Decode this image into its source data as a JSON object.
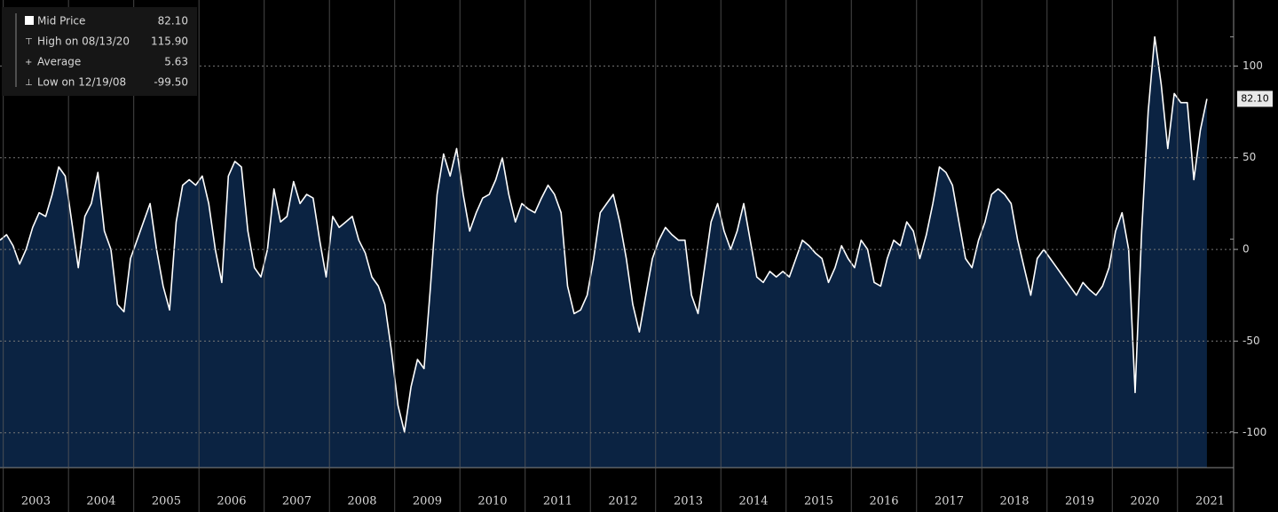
{
  "chart_data": {
    "type": "area",
    "x": [
      2002.95,
      2003.05,
      2003.15,
      2003.25,
      2003.35,
      2003.45,
      2003.55,
      2003.65,
      2003.75,
      2003.85,
      2003.95,
      2004.05,
      2004.15,
      2004.25,
      2004.35,
      2004.45,
      2004.55,
      2004.65,
      2004.75,
      2004.85,
      2004.95,
      2005.05,
      2005.15,
      2005.25,
      2005.35,
      2005.45,
      2005.55,
      2005.65,
      2005.75,
      2005.85,
      2005.95,
      2006.05,
      2006.15,
      2006.25,
      2006.35,
      2006.45,
      2006.55,
      2006.65,
      2006.75,
      2006.85,
      2006.95,
      2007.05,
      2007.15,
      2007.25,
      2007.35,
      2007.45,
      2007.55,
      2007.65,
      2007.75,
      2007.85,
      2007.95,
      2008.05,
      2008.15,
      2008.25,
      2008.35,
      2008.45,
      2008.55,
      2008.65,
      2008.75,
      2008.85,
      2008.95,
      2009.05,
      2009.15,
      2009.25,
      2009.35,
      2009.45,
      2009.55,
      2009.65,
      2009.75,
      2009.85,
      2009.95,
      2010.05,
      2010.15,
      2010.25,
      2010.35,
      2010.45,
      2010.55,
      2010.65,
      2010.75,
      2010.85,
      2010.95,
      2011.05,
      2011.15,
      2011.25,
      2011.35,
      2011.45,
      2011.55,
      2011.65,
      2011.75,
      2011.85,
      2011.95,
      2012.05,
      2012.15,
      2012.25,
      2012.35,
      2012.45,
      2012.55,
      2012.65,
      2012.75,
      2012.85,
      2012.95,
      2013.05,
      2013.15,
      2013.25,
      2013.35,
      2013.45,
      2013.55,
      2013.65,
      2013.75,
      2013.85,
      2013.95,
      2014.05,
      2014.15,
      2014.25,
      2014.35,
      2014.45,
      2014.55,
      2014.65,
      2014.75,
      2014.85,
      2014.95,
      2015.05,
      2015.15,
      2015.25,
      2015.35,
      2015.45,
      2015.55,
      2015.65,
      2015.75,
      2015.85,
      2015.95,
      2016.05,
      2016.15,
      2016.25,
      2016.35,
      2016.45,
      2016.55,
      2016.65,
      2016.75,
      2016.85,
      2016.95,
      2017.05,
      2017.15,
      2017.25,
      2017.35,
      2017.45,
      2017.55,
      2017.65,
      2017.75,
      2017.85,
      2017.95,
      2018.05,
      2018.15,
      2018.25,
      2018.35,
      2018.45,
      2018.55,
      2018.65,
      2018.75,
      2018.85,
      2018.95,
      2019.05,
      2019.15,
      2019.25,
      2019.35,
      2019.45,
      2019.55,
      2019.65,
      2019.75,
      2019.85,
      2019.95,
      2020.05,
      2020.15,
      2020.25,
      2020.35,
      2020.45,
      2020.55,
      2020.65,
      2020.75,
      2020.85,
      2020.95,
      2021.05,
      2021.15,
      2021.25,
      2021.35,
      2021.45
    ],
    "series": [
      {
        "name": "Mid Price",
        "color": "#ffffff",
        "fill": "#0b2342",
        "values": [
          5,
          8,
          2,
          -8,
          0,
          12,
          20,
          18,
          30,
          45,
          40,
          15,
          -10,
          18,
          25,
          42,
          10,
          0,
          -30,
          -34,
          -5,
          5,
          15,
          25,
          0,
          -20,
          -33,
          15,
          35,
          38,
          35,
          40,
          25,
          0,
          -18,
          40,
          48,
          45,
          10,
          -10,
          -15,
          0,
          33,
          15,
          18,
          37,
          25,
          30,
          28,
          5,
          -15,
          18,
          12,
          15,
          18,
          5,
          -2,
          -15,
          -20,
          -30,
          -55,
          -85,
          -99.5,
          -75,
          -60,
          -65,
          -20,
          30,
          52,
          40,
          55,
          30,
          10,
          20,
          28,
          30,
          38,
          50,
          30,
          15,
          25,
          22,
          20,
          28,
          35,
          30,
          20,
          -20,
          -35,
          -33,
          -25,
          -5,
          20,
          25,
          30,
          15,
          -5,
          -30,
          -45,
          -25,
          -5,
          5,
          12,
          8,
          5,
          5,
          -25,
          -35,
          -10,
          15,
          25,
          10,
          0,
          10,
          25,
          5,
          -15,
          -18,
          -12,
          -15,
          -12,
          -15,
          -5,
          5,
          2,
          -2,
          -5,
          -18,
          -10,
          2,
          -5,
          -10,
          5,
          0,
          -18,
          -20,
          -5,
          5,
          2,
          15,
          10,
          -5,
          8,
          25,
          45,
          42,
          35,
          15,
          -5,
          -10,
          5,
          15,
          30,
          33,
          30,
          25,
          5,
          -10,
          -25,
          -5,
          0,
          -5,
          -10,
          -15,
          -20,
          -25,
          -18,
          -22,
          -25,
          -20,
          -10,
          10,
          20,
          0,
          -78,
          10,
          75,
          115.9,
          90,
          55,
          85,
          80,
          80,
          38,
          65,
          82.1
        ],
        "last": {
          "value": 82.1,
          "label": "82.10"
        }
      }
    ],
    "stats": {
      "labels": [
        "High on 08/13/20",
        "Average",
        "Low on 12/19/08"
      ],
      "values": [
        115.9,
        5.63,
        -99.5
      ],
      "value_labels": [
        "115.90",
        "5.63",
        "-99.50"
      ]
    },
    "xlim": [
      2002.95,
      2021.86
    ],
    "xticks": [
      2003,
      2004,
      2005,
      2006,
      2007,
      2008,
      2009,
      2010,
      2011,
      2012,
      2013,
      2014,
      2015,
      2016,
      2017,
      2018,
      2019,
      2020,
      2021
    ],
    "ylim": [
      -119,
      136
    ],
    "yticks": [
      -100,
      -50,
      0,
      50,
      100
    ],
    "grid": true
  }
}
